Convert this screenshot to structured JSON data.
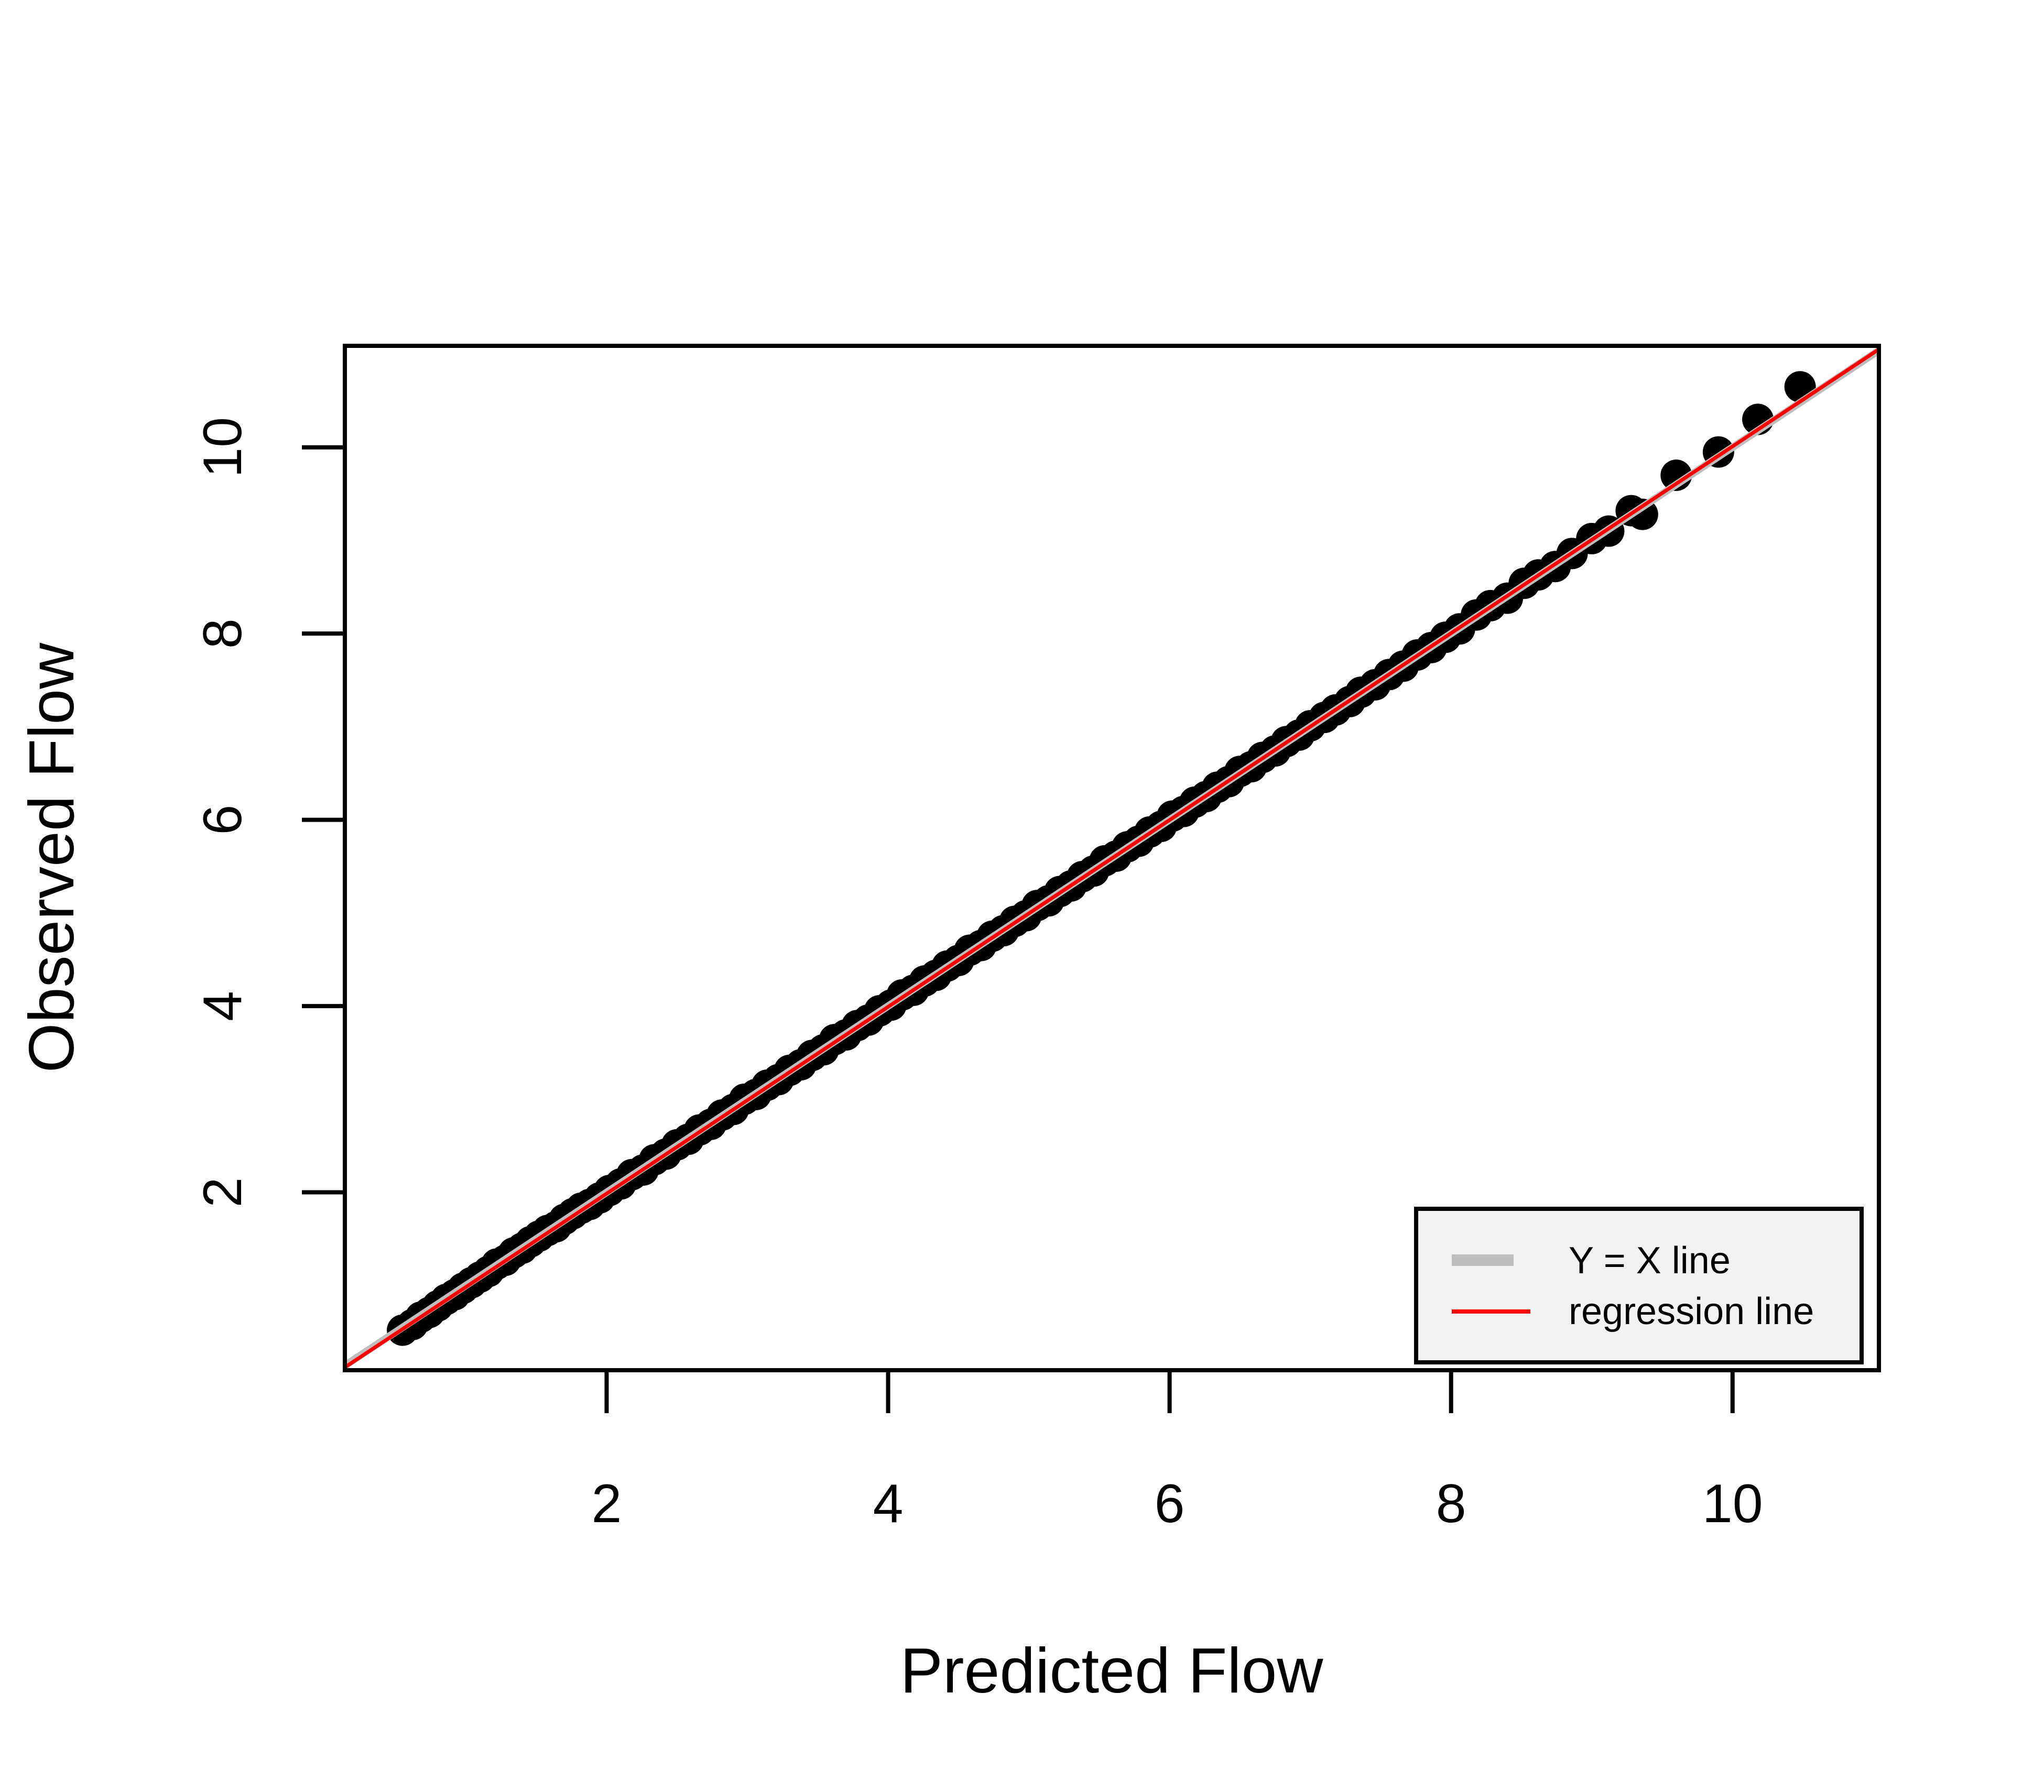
{
  "chart_data": {
    "type": "scatter",
    "title": "",
    "xlabel": "Predicted Flow",
    "ylabel": "Observed Flow",
    "xlim": [
      0.14,
      11.04
    ],
    "ylim": [
      0.09,
      11.09
    ],
    "xticks": [
      2,
      4,
      6,
      8,
      10
    ],
    "yticks": [
      2,
      4,
      6,
      8,
      10
    ],
    "x_tick_labels": [
      "2",
      "4",
      "6",
      "8",
      "10"
    ],
    "y_tick_labels": [
      "2",
      "4",
      "6",
      "8",
      "10"
    ],
    "grid": false,
    "legend_position": "bottom-right",
    "legend": [
      {
        "label": "Y = X line",
        "color": "#bebebe"
      },
      {
        "label": "regression line",
        "color": "#ff0000"
      }
    ],
    "series": [
      {
        "marker": "filled-circle",
        "color": "#000000",
        "points": [
          [
            0.55,
            0.52
          ],
          [
            0.62,
            0.58
          ],
          [
            0.68,
            0.66
          ],
          [
            0.74,
            0.71
          ],
          [
            0.8,
            0.78
          ],
          [
            0.86,
            0.85
          ],
          [
            0.92,
            0.9
          ],
          [
            0.98,
            0.97
          ],
          [
            1.04,
            1.03
          ],
          [
            1.1,
            1.09
          ],
          [
            1.16,
            1.15
          ],
          [
            1.22,
            1.23
          ],
          [
            1.28,
            1.27
          ],
          [
            1.34,
            1.35
          ],
          [
            1.4,
            1.4
          ],
          [
            1.46,
            1.47
          ],
          [
            1.52,
            1.53
          ],
          [
            1.58,
            1.59
          ],
          [
            1.64,
            1.63
          ],
          [
            1.7,
            1.71
          ],
          [
            1.76,
            1.77
          ],
          [
            1.82,
            1.83
          ],
          [
            1.88,
            1.87
          ],
          [
            1.95,
            1.94
          ],
          [
            2.02,
            2.02
          ],
          [
            2.1,
            2.09
          ],
          [
            2.18,
            2.19
          ],
          [
            2.26,
            2.24
          ],
          [
            2.34,
            2.35
          ],
          [
            2.42,
            2.41
          ],
          [
            2.5,
            2.51
          ],
          [
            2.58,
            2.57
          ],
          [
            2.66,
            2.67
          ],
          [
            2.74,
            2.73
          ],
          [
            2.82,
            2.83
          ],
          [
            2.9,
            2.89
          ],
          [
            2.98,
            3.0
          ],
          [
            3.06,
            3.05
          ],
          [
            3.14,
            3.15
          ],
          [
            3.22,
            3.21
          ],
          [
            3.3,
            3.31
          ],
          [
            3.38,
            3.37
          ],
          [
            3.46,
            3.47
          ],
          [
            3.54,
            3.53
          ],
          [
            3.62,
            3.64
          ],
          [
            3.7,
            3.69
          ],
          [
            3.78,
            3.79
          ],
          [
            3.86,
            3.85
          ],
          [
            3.94,
            3.95
          ],
          [
            4.02,
            4.01
          ],
          [
            4.1,
            4.12
          ],
          [
            4.18,
            4.17
          ],
          [
            4.26,
            4.27
          ],
          [
            4.34,
            4.33
          ],
          [
            4.42,
            4.43
          ],
          [
            4.5,
            4.49
          ],
          [
            4.58,
            4.6
          ],
          [
            4.66,
            4.65
          ],
          [
            4.74,
            4.75
          ],
          [
            4.82,
            4.81
          ],
          [
            4.9,
            4.91
          ],
          [
            4.98,
            4.97
          ],
          [
            5.06,
            5.08
          ],
          [
            5.14,
            5.13
          ],
          [
            5.22,
            5.23
          ],
          [
            5.3,
            5.29
          ],
          [
            5.38,
            5.39
          ],
          [
            5.46,
            5.45
          ],
          [
            5.54,
            5.56
          ],
          [
            5.62,
            5.61
          ],
          [
            5.7,
            5.71
          ],
          [
            5.78,
            5.77
          ],
          [
            5.86,
            5.87
          ],
          [
            5.94,
            5.93
          ],
          [
            6.02,
            6.04
          ],
          [
            6.1,
            6.09
          ],
          [
            6.18,
            6.19
          ],
          [
            6.26,
            6.25
          ],
          [
            6.34,
            6.35
          ],
          [
            6.42,
            6.41
          ],
          [
            6.5,
            6.52
          ],
          [
            6.58,
            6.57
          ],
          [
            6.66,
            6.67
          ],
          [
            6.75,
            6.74
          ],
          [
            6.83,
            6.84
          ],
          [
            6.92,
            6.91
          ],
          [
            7.0,
            7.01
          ],
          [
            7.1,
            7.1
          ],
          [
            7.18,
            7.18
          ],
          [
            7.28,
            7.27
          ],
          [
            7.36,
            7.37
          ],
          [
            7.46,
            7.45
          ],
          [
            7.56,
            7.56
          ],
          [
            7.66,
            7.65
          ],
          [
            7.76,
            7.77
          ],
          [
            7.86,
            7.85
          ],
          [
            7.96,
            7.96
          ],
          [
            8.06,
            8.05
          ],
          [
            8.18,
            8.2
          ],
          [
            8.28,
            8.3
          ],
          [
            8.4,
            8.38
          ],
          [
            8.52,
            8.54
          ],
          [
            8.62,
            8.63
          ],
          [
            8.74,
            8.72
          ],
          [
            8.86,
            8.86
          ],
          [
            9.0,
            9.02
          ],
          [
            9.12,
            9.1
          ],
          [
            9.28,
            9.32
          ],
          [
            9.36,
            9.28
          ],
          [
            9.6,
            9.7
          ],
          [
            9.9,
            9.95
          ],
          [
            10.18,
            10.3
          ],
          [
            10.48,
            10.65
          ]
        ]
      },
      {
        "name": "Y = X line",
        "type": "line",
        "intercept": 0,
        "slope": 1,
        "color": "#bebebe"
      },
      {
        "name": "regression line",
        "type": "line",
        "intercept": -0.02,
        "slope": 1.003,
        "color": "#ff0000"
      }
    ]
  }
}
